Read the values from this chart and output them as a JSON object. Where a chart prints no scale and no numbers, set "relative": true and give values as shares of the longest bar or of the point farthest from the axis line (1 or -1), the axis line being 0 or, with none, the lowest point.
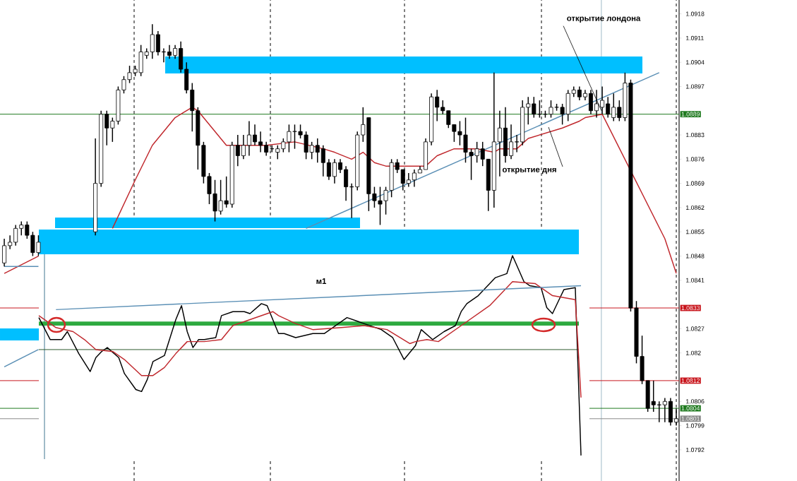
{
  "chart_data": [
    {
      "type": "candlestick",
      "color": "#000000",
      "categories": [
        null,
        null,
        null,
        null,
        null,
        null,
        null,
        null,
        null,
        null,
        null,
        null,
        null,
        null,
        null,
        null,
        null,
        null,
        null,
        null,
        null,
        null,
        null,
        null,
        null,
        null,
        null,
        null,
        null,
        null,
        null,
        null,
        null,
        null,
        null,
        null,
        null,
        null,
        null,
        null,
        null,
        null,
        null,
        null,
        null,
        null,
        null,
        null,
        null,
        null,
        null,
        null,
        null,
        null,
        null,
        null,
        null,
        null,
        null,
        null,
        null,
        null,
        null,
        null,
        null,
        null,
        null,
        null,
        null,
        null,
        null,
        null,
        null,
        null,
        null,
        null,
        null,
        null,
        null,
        null,
        null,
        null,
        null,
        null,
        null,
        null,
        null,
        null,
        null,
        null,
        null,
        null,
        null,
        null,
        null,
        null,
        null,
        null,
        null,
        null,
        null,
        null,
        null,
        null,
        null,
        null,
        null,
        null,
        null,
        null,
        null,
        null,
        null,
        null,
        null,
        null,
        null,
        null,
        null
      ],
      "ohlc": [
        [
          1.0846,
          1.0853,
          1.0845,
          1.0851
        ],
        [
          1.0851,
          1.0854,
          1.085,
          1.0852
        ],
        [
          1.0852,
          1.0857,
          1.0851,
          1.0856
        ],
        [
          1.0856,
          1.0858,
          1.0854,
          1.0857
        ],
        [
          1.0857,
          1.0858,
          1.0853,
          1.0854
        ],
        [
          1.0854,
          1.0855,
          1.0848,
          1.0849
        ],
        [
          1.0849,
          1.0854,
          1.0848,
          1.0852
        ],
        null,
        null,
        null,
        null,
        null,
        null,
        null,
        null,
        null,
        [
          1.0855,
          1.0882,
          1.0854,
          1.0869
        ],
        [
          1.0869,
          1.089,
          1.0868,
          1.0889
        ],
        [
          1.0889,
          1.089,
          1.088,
          1.0885
        ],
        [
          1.0885,
          1.0888,
          1.0881,
          1.0887
        ],
        [
          1.0887,
          1.0897,
          1.0886,
          1.0896
        ],
        [
          1.0896,
          1.09,
          1.0895,
          1.0899
        ],
        [
          1.0899,
          1.0903,
          1.0898,
          1.0901
        ],
        [
          1.0901,
          1.0903,
          1.09,
          1.0902
        ],
        [
          1.0901,
          1.0909,
          1.09,
          1.0907
        ],
        [
          1.0906,
          1.0908,
          1.0905,
          1.0907
        ],
        [
          1.0907,
          1.0915,
          1.0905,
          1.0912
        ],
        [
          1.0912,
          1.0913,
          1.0906,
          1.0907
        ],
        [
          1.0907,
          1.0908,
          1.0904,
          1.0907
        ],
        [
          1.0907,
          1.0909,
          1.0905,
          1.0906
        ],
        [
          1.0906,
          1.0909,
          1.0905,
          1.0908
        ],
        [
          1.0908,
          1.091,
          1.0901,
          1.0902
        ],
        [
          1.0902,
          1.0904,
          1.0895,
          1.0896
        ],
        [
          1.0896,
          1.0898,
          1.0884,
          1.089
        ],
        [
          1.089,
          1.0891,
          1.0873,
          1.088
        ],
        [
          1.088,
          1.0881,
          1.0869,
          1.0871
        ],
        [
          1.0871,
          1.0872,
          1.0863,
          1.0866
        ],
        [
          1.0866,
          1.087,
          1.0858,
          1.0861
        ],
        [
          1.0861,
          1.087,
          1.086,
          1.0864
        ],
        [
          1.0864,
          1.0871,
          1.0862,
          1.0863
        ],
        [
          1.0863,
          1.0881,
          1.0862,
          1.088
        ],
        [
          1.088,
          1.0883,
          1.0874,
          1.0877
        ],
        [
          1.0877,
          1.0883,
          1.0876,
          1.088
        ],
        [
          1.088,
          1.0887,
          1.0877,
          1.0883
        ],
        [
          1.0883,
          1.0886,
          1.088,
          1.0881
        ],
        [
          1.0881,
          1.0884,
          1.0878,
          1.088
        ],
        [
          1.088,
          1.0881,
          1.0877,
          1.0878
        ],
        [
          1.0879,
          1.088,
          1.0878,
          1.0879
        ],
        [
          1.0878,
          1.088,
          1.0876,
          1.0879
        ],
        [
          1.0879,
          1.0882,
          1.0878,
          1.0881
        ],
        [
          1.0881,
          1.0886,
          1.0878,
          1.0884
        ],
        [
          1.0884,
          1.0886,
          1.0879,
          1.0884
        ],
        [
          1.0884,
          1.0886,
          1.0882,
          1.0883
        ],
        [
          1.0883,
          1.0884,
          1.0876,
          1.0878
        ],
        [
          1.0878,
          1.0881,
          1.0876,
          1.088
        ],
        [
          1.088,
          1.0882,
          1.0875,
          1.0878
        ],
        [
          1.0879,
          1.088,
          1.0871,
          1.0875
        ],
        [
          1.0875,
          1.0876,
          1.087,
          1.0871
        ],
        [
          1.0871,
          1.0876,
          1.0869,
          1.0875
        ],
        [
          1.0875,
          1.0876,
          1.0872,
          1.0873
        ],
        [
          1.0873,
          1.0874,
          1.0864,
          1.0868
        ],
        [
          1.0868,
          1.0869,
          1.0859,
          1.0868
        ],
        [
          1.0868,
          1.0884,
          1.0867,
          1.0883
        ],
        [
          1.0883,
          1.0891,
          1.0881,
          1.0886
        ],
        [
          1.0888,
          1.0888,
          1.0861,
          1.0866
        ],
        [
          1.0866,
          1.0868,
          1.0862,
          1.0864
        ],
        [
          1.0864,
          1.0868,
          1.0857,
          1.0863
        ],
        [
          1.0864,
          1.0868,
          1.086,
          1.0867
        ],
        [
          1.0867,
          1.0876,
          1.0865,
          1.0875
        ],
        [
          1.0875,
          1.0876,
          1.0872,
          1.0873
        ],
        [
          1.0873,
          1.0873,
          1.0867,
          1.0869
        ],
        [
          1.0869,
          1.0872,
          1.0868,
          1.087
        ],
        [
          1.087,
          1.0873,
          1.0868,
          1.0872
        ],
        [
          1.0872,
          1.0874,
          1.0872,
          1.0873
        ],
        [
          1.0873,
          1.0882,
          1.0873,
          1.0881
        ],
        [
          1.0881,
          1.0895,
          1.088,
          1.0894
        ],
        [
          1.0894,
          1.0896,
          1.0887,
          1.0891
        ],
        [
          1.0891,
          1.0893,
          1.0889,
          1.089
        ],
        [
          1.089,
          1.089,
          1.0885,
          1.0886
        ],
        [
          1.0886,
          1.0886,
          1.0881,
          1.0884
        ],
        [
          1.0884,
          1.0887,
          1.088,
          1.0883
        ],
        [
          1.0883,
          1.0888,
          1.0875,
          1.0878
        ],
        [
          1.0878,
          1.0879,
          1.087,
          1.0877
        ],
        [
          1.0877,
          1.0881,
          1.0875,
          1.0879
        ],
        [
          1.0879,
          1.0881,
          1.0874,
          1.0876
        ],
        [
          1.0876,
          1.0876,
          1.0861,
          1.0867
        ],
        [
          1.0867,
          1.0901,
          1.0862,
          1.0881
        ],
        [
          1.0881,
          1.089,
          1.0871,
          1.0885
        ],
        [
          1.0885,
          1.0891,
          1.0875,
          1.0877
        ],
        [
          1.0877,
          1.0886,
          1.0876,
          1.0881
        ],
        [
          1.0881,
          1.0883,
          1.0878,
          1.0881
        ],
        [
          1.0881,
          1.0893,
          1.088,
          1.0891
        ],
        [
          1.0891,
          1.0894,
          1.0886,
          1.0892
        ],
        [
          1.0892,
          1.0894,
          1.0888,
          1.0889
        ],
        [
          1.0889,
          1.0893,
          1.0888,
          1.0889
        ],
        [
          1.0889,
          1.089,
          1.0888,
          1.0889
        ],
        [
          1.0889,
          1.0893,
          1.0888,
          1.0891
        ],
        [
          1.0891,
          1.0892,
          1.089,
          1.0891
        ],
        [
          1.0891,
          1.0892,
          1.0886,
          1.0889
        ],
        [
          1.0889,
          1.0896,
          1.0887,
          1.0895
        ],
        [
          1.0895,
          1.0897,
          1.0894,
          1.0896
        ],
        [
          1.0896,
          1.0897,
          1.0893,
          1.0894
        ],
        [
          1.0894,
          1.0896,
          1.0893,
          1.0895
        ],
        [
          1.0895,
          1.0896,
          1.0889,
          1.089
        ],
        [
          1.089,
          1.0896,
          1.0888,
          1.0892
        ],
        [
          1.0891,
          1.0897,
          1.0889,
          1.0893
        ],
        [
          1.0892,
          1.0894,
          1.0888,
          1.0889
        ],
        [
          1.0888,
          1.0895,
          1.0887,
          1.0891
        ],
        [
          1.0891,
          1.0893,
          1.0887,
          1.0888
        ],
        [
          1.0888,
          1.0901,
          1.0887,
          1.0898
        ],
        [
          1.0898,
          1.0899,
          1.0832,
          1.0833
        ],
        [
          1.0833,
          1.0835,
          1.0817,
          1.0819
        ],
        [
          1.0819,
          1.0825,
          1.0811,
          1.0812
        ],
        [
          1.0812,
          1.0812,
          1.0803,
          1.0804
        ],
        [
          1.0806,
          1.0812,
          1.0803,
          1.0805
        ],
        [
          1.0805,
          1.0806,
          1.08,
          1.0805
        ],
        [
          1.0805,
          1.0807,
          1.08,
          1.0806
        ],
        [
          1.0806,
          1.0807,
          1.0799,
          1.08
        ],
        [
          1.08,
          1.0804,
          1.0799,
          1.0801
        ]
      ],
      "series": [
        {
          "type": "line",
          "color": "#c0282d",
          "values": [
            null,
            null,
            null,
            null,
            null,
            null,
            null,
            null,
            null,
            null,
            null,
            null,
            null,
            null,
            null,
            null,
            null,
            null,
            null,
            1.0856,
            null,
            null,
            null,
            1.087,
            null,
            null,
            1.088,
            null,
            null,
            null,
            1.0888,
            null,
            null,
            1.0891,
            1.089,
            null,
            null,
            null,
            null,
            1.088,
            null,
            null,
            null,
            null,
            null,
            null,
            1.088,
            null,
            null,
            null,
            null,
            1.0881,
            null,
            null,
            null,
            null,
            1.0879,
            null,
            1.0878,
            null,
            null,
            1.0876,
            null,
            1.0878,
            null,
            1.0875,
            null,
            1.0874,
            null,
            null,
            1.0874,
            null,
            null,
            null,
            1.0874,
            null,
            1.0877,
            null,
            null,
            1.0879,
            null,
            null,
            null,
            1.0879,
            null,
            null,
            1.0878,
            1.0879,
            null,
            null,
            1.0879,
            null,
            1.0882,
            null,
            null,
            null,
            1.0884,
            null,
            1.0885,
            null,
            null,
            1.0887,
            1.0888,
            null,
            null,
            1.0889,
            null,
            null,
            null,
            null,
            null,
            null,
            null,
            null,
            null,
            null,
            1.0853,
            null,
            1.0843
          ]
        },
        {
          "type": "line",
          "color": "#c0282d",
          "values": [
            1.0843,
            null,
            null,
            null,
            null,
            null,
            1.0848,
            null,
            null,
            null,
            null,
            null,
            null,
            null,
            null,
            null,
            null,
            null,
            null,
            null,
            null,
            null,
            null,
            null,
            null,
            null,
            null,
            null,
            null,
            null,
            null,
            null,
            null,
            null,
            null,
            null,
            null,
            null,
            null,
            null,
            null,
            null,
            null,
            null,
            null,
            null,
            null,
            null,
            null,
            null,
            null,
            null,
            null,
            null,
            null,
            null,
            null,
            null,
            null,
            null,
            null,
            null,
            null,
            null,
            null,
            null,
            null,
            null,
            null,
            null,
            null,
            null,
            null,
            null,
            null,
            null,
            null,
            null,
            null,
            null,
            null,
            null,
            null,
            null,
            null,
            null,
            null,
            null,
            null,
            null,
            null,
            null,
            null,
            null,
            null,
            null,
            null,
            null,
            null,
            null,
            null,
            null,
            null,
            null,
            null,
            null,
            null,
            null,
            null,
            null,
            null,
            null,
            null,
            null,
            null,
            null,
            null,
            null,
            null
          ]
        },
        {
          "type": "line",
          "color": "#5a8fb5",
          "values": [
            null,
            null,
            null,
            null,
            null,
            null,
            null,
            null,
            null,
            null,
            null,
            null,
            null,
            null,
            null,
            null,
            null,
            null,
            null,
            null,
            null,
            null,
            null,
            null,
            null,
            null,
            null,
            null,
            null,
            null,
            null,
            null,
            null,
            null,
            null,
            null,
            null,
            null,
            null,
            null,
            null,
            null,
            null,
            null,
            null,
            null,
            null,
            null,
            null,
            null,
            null,
            null,
            null,
            1.0856,
            null,
            null,
            null,
            null,
            null,
            null,
            null,
            null,
            null,
            null,
            null,
            null,
            null,
            null,
            null,
            null,
            null,
            null,
            null,
            null,
            null,
            null,
            null,
            null,
            null,
            null,
            null,
            null,
            null,
            null,
            null,
            null,
            null,
            null,
            null,
            null,
            null,
            null,
            null,
            null,
            null,
            null,
            null,
            null,
            null,
            null,
            null,
            null,
            null,
            null,
            null,
            null,
            null,
            null,
            null,
            null,
            null,
            null,
            null,
            null,
            null,
            1.0901,
            null,
            null,
            null
          ]
        },
        {
          "type": "line",
          "color": "#5a8fb5",
          "values": [
            1.0816,
            null,
            null,
            null,
            null,
            null,
            1.0821,
            null,
            null,
            null,
            null,
            null,
            null,
            null,
            null,
            null,
            null,
            null,
            null,
            null,
            null,
            null,
            null,
            null,
            null,
            null,
            null,
            null,
            null,
            null,
            null,
            null,
            null,
            null,
            null,
            null,
            null,
            null,
            null,
            null,
            null,
            null,
            null,
            null,
            null,
            null,
            null,
            null,
            null,
            null,
            null,
            null,
            null,
            null,
            null,
            null,
            null,
            null,
            null,
            null,
            null,
            null,
            null,
            null,
            null,
            null,
            null,
            null,
            null,
            null,
            null,
            null,
            null,
            null,
            null,
            null,
            null,
            null,
            null,
            null,
            null,
            null,
            null,
            null,
            null,
            null,
            null,
            null,
            null,
            null,
            null,
            null,
            null,
            null,
            null,
            null,
            null,
            null,
            null,
            null,
            null,
            null,
            null,
            null,
            null,
            null,
            null,
            null,
            null,
            null,
            null,
            null,
            null,
            null,
            null,
            null,
            null,
            null,
            null
          ]
        },
        {
          "type": "line",
          "color": "#5a8fb5",
          "values": [
            1.0845,
            null,
            null,
            null,
            null,
            null,
            1.0845,
            null,
            null,
            null,
            null,
            null,
            null,
            null,
            null,
            null,
            null,
            null,
            null,
            null,
            null,
            null,
            null,
            null,
            null,
            null,
            null,
            null,
            null,
            null,
            null,
            null,
            null,
            null,
            null,
            null,
            null,
            null,
            null,
            null,
            null,
            null,
            null,
            null,
            null,
            null,
            null,
            null,
            null,
            null,
            null,
            null,
            null,
            null,
            null,
            null,
            null,
            null,
            null,
            null,
            null,
            null,
            null,
            null,
            null,
            null,
            null,
            null,
            null,
            null,
            null,
            null,
            null,
            null,
            null,
            null,
            null,
            null,
            null,
            null,
            null,
            null,
            null,
            null,
            null,
            null,
            null,
            null,
            null,
            null,
            null,
            null,
            null,
            null,
            null,
            null,
            null,
            null,
            null,
            null,
            null,
            null,
            null,
            null,
            null,
            null,
            null,
            null,
            null,
            null,
            null,
            null,
            null,
            null,
            null,
            null,
            null,
            null,
            null
          ]
        }
      ],
      "ylim": [
        1.0783,
        1.0922
      ],
      "yticks": [
        1.0918,
        1.0911,
        1.0904,
        1.0897,
        1.0883,
        1.0876,
        1.0869,
        1.0862,
        1.0855,
        1.0848,
        1.0841,
        1.0827,
        1.082,
        1.0806,
        1.0799,
        1.0792
      ],
      "ref_lines": [
        {
          "axis": "y",
          "value": 1.0889,
          "label": "1.0889",
          "color": "#1f7a1f"
        },
        {
          "axis": "y",
          "value": 1.0833,
          "label": "1.0833",
          "color": "#c8161d"
        },
        {
          "axis": "y",
          "value": 1.0812,
          "label": "1.0812",
          "color": "#c8161d"
        },
        {
          "axis": "y",
          "value": 1.0804,
          "label": "1.0804",
          "color": "#1f7a1f"
        },
        {
          "axis": "y",
          "value": 1.0801,
          "label": "1.0801",
          "color": "#8a8a8a"
        }
      ],
      "annotations": [
        {
          "text": "открытие  лондона",
          "y": 1.089
        },
        "открытие дня"
      ]
    },
    {
      "type": "line",
      "relative": true,
      "categories": [
        null,
        null,
        null,
        null,
        null,
        null,
        null,
        null,
        null,
        null,
        null,
        null,
        null,
        null,
        null,
        null,
        null,
        null,
        null,
        null,
        null,
        null,
        null,
        null,
        null,
        null,
        null,
        null,
        null,
        null,
        null,
        null,
        null,
        null,
        null,
        null,
        null,
        null,
        null,
        null,
        null,
        null,
        null,
        null,
        null,
        null,
        null,
        null,
        null,
        null,
        null,
        null,
        null,
        null,
        null,
        null,
        null,
        null,
        null,
        null,
        null,
        null,
        null,
        null,
        null,
        null,
        null,
        null,
        null,
        null,
        null,
        null,
        null,
        null,
        null,
        null,
        null,
        null,
        null,
        null,
        null,
        null,
        null,
        null,
        null,
        null,
        null,
        null,
        null,
        null,
        null,
        null,
        null,
        null,
        null,
        null
      ],
      "series": [
        {
          "color": "#000000",
          "values": [
            0.69,
            null,
            0.58,
            null,
            0.58,
            0.62,
            null,
            0.51,
            null,
            0.42,
            0.49,
            0.52,
            0.54,
            null,
            0.49,
            0.41,
            null,
            0.33,
            0.32,
            0.38,
            0.47,
            null,
            0.5,
            0.59,
            0.68,
            0.75,
            0.62,
            0.54,
            0.58,
            0.58,
            null,
            0.59,
            0.7,
            null,
            0.72,
            null,
            0.72,
            0.71,
            null,
            0.76,
            0.75,
            null,
            0.61,
            0.61,
            null,
            0.59,
            null,
            null,
            0.61,
            null,
            0.61,
            null,
            null,
            null,
            0.69,
            null,
            null,
            0.66,
            null,
            null,
            0.63,
            null,
            0.59,
            null,
            0.48,
            null,
            0.55,
            0.63,
            null,
            0.58,
            null,
            0.62,
            null,
            0.65,
            0.72,
            0.76,
            null,
            0.8,
            null,
            null,
            0.89,
            null,
            0.91,
            1.0,
            null,
            0.87,
            0.85,
            null,
            0.84,
            0.74,
            0.71,
            0.77,
            0.83,
            null,
            0.84,
            0
          ]
        },
        {
          "color": "#c0282d",
          "values": [
            0.7,
            null,
            null,
            0.64,
            null,
            null,
            0.62,
            null,
            0.58,
            null,
            0.53,
            null,
            null,
            0.52,
            null,
            0.48,
            null,
            null,
            0.4,
            null,
            0.4,
            null,
            0.44,
            null,
            0.51,
            null,
            0.57,
            null,
            null,
            0.57,
            null,
            null,
            0.58,
            null,
            0.65,
            null,
            null,
            0.68,
            null,
            null,
            null,
            0.72,
            0.7,
            null,
            null,
            0.66,
            null,
            null,
            0.63,
            null,
            null,
            null,
            null,
            0.64,
            null,
            null,
            null,
            0.65,
            null,
            null,
            null,
            0.63,
            null,
            null,
            null,
            0.56,
            0.57,
            null,
            0.58,
            null,
            0.57,
            null,
            null,
            null,
            0.65,
            null,
            null,
            null,
            null,
            0.75,
            null,
            null,
            null,
            0.87,
            null,
            null,
            null,
            0.86,
            null,
            null,
            0.8,
            null,
            null,
            null,
            0.78,
            0.29
          ]
        },
        {
          "color": "#5a8fb5",
          "values": [
            null,
            null,
            null,
            0.73,
            null,
            null,
            null,
            null,
            null,
            null,
            null,
            null,
            null,
            null,
            null,
            null,
            null,
            null,
            null,
            null,
            null,
            null,
            null,
            null,
            null,
            null,
            null,
            null,
            null,
            null,
            null,
            null,
            null,
            null,
            null,
            null,
            null,
            null,
            null,
            null,
            null,
            null,
            null,
            null,
            null,
            null,
            null,
            null,
            null,
            null,
            null,
            null,
            null,
            null,
            null,
            null,
            null,
            null,
            null,
            null,
            null,
            null,
            null,
            null,
            null,
            null,
            null,
            null,
            null,
            null,
            null,
            null,
            null,
            null,
            null,
            null,
            null,
            null,
            null,
            null,
            null,
            null,
            null,
            null,
            null,
            null,
            null,
            null,
            null,
            null,
            null,
            null,
            null,
            null,
            null,
            0.85
          ]
        }
      ],
      "ref_lines": [
        {
          "axis": "y",
          "value": 0.53,
          "color": "#2d5a2d"
        }
      ],
      "bands": [
        {
          "axis": "y",
          "from": 0.65,
          "to": 0.67,
          "color": "#2eaa40"
        }
      ],
      "annotations": [
        "м1"
      ]
    }
  ]
}
